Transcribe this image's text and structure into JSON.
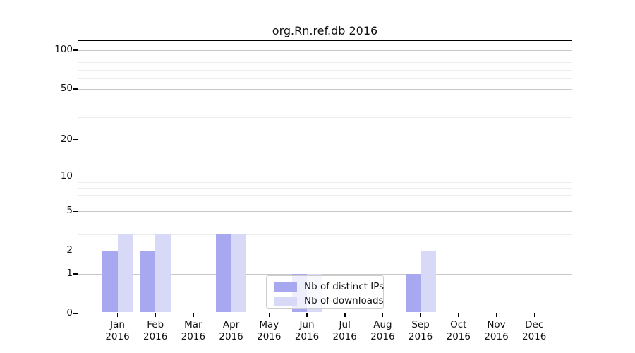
{
  "chart_data": {
    "type": "bar",
    "title": "org.Rn.ref.db 2016",
    "categories": [
      "Jan",
      "Feb",
      "Mar",
      "Apr",
      "May",
      "Jun",
      "Jul",
      "Aug",
      "Sep",
      "Oct",
      "Nov",
      "Dec"
    ],
    "x_year_suffix": "2016",
    "series": [
      {
        "name": "Nb of distinct IPs",
        "color": "#a8a8f0",
        "values": [
          2,
          2,
          0,
          3,
          0,
          1,
          0,
          0,
          1,
          0,
          0,
          0
        ]
      },
      {
        "name": "Nb of downloads",
        "color": "#d8d8f7",
        "values": [
          3,
          3,
          0,
          3,
          0,
          1,
          0,
          0,
          2,
          0,
          0,
          0
        ]
      }
    ],
    "y_axis": {
      "scale": "log1p",
      "major_ticks": [
        0,
        1,
        2,
        5,
        10,
        20,
        50,
        100
      ],
      "minor_ticks": [
        3,
        4,
        6,
        7,
        8,
        9,
        30,
        40,
        60,
        70,
        80,
        90
      ],
      "range": [
        0,
        118
      ]
    },
    "grid": {
      "visible": true,
      "major_color": "#c8c8c8",
      "minor_color": "#ececec"
    },
    "legend": {
      "position": "inside-lower-center"
    },
    "colors": {
      "spine": "#000000",
      "tick": "#000000",
      "text": "#111111",
      "background": "#ffffff"
    }
  }
}
